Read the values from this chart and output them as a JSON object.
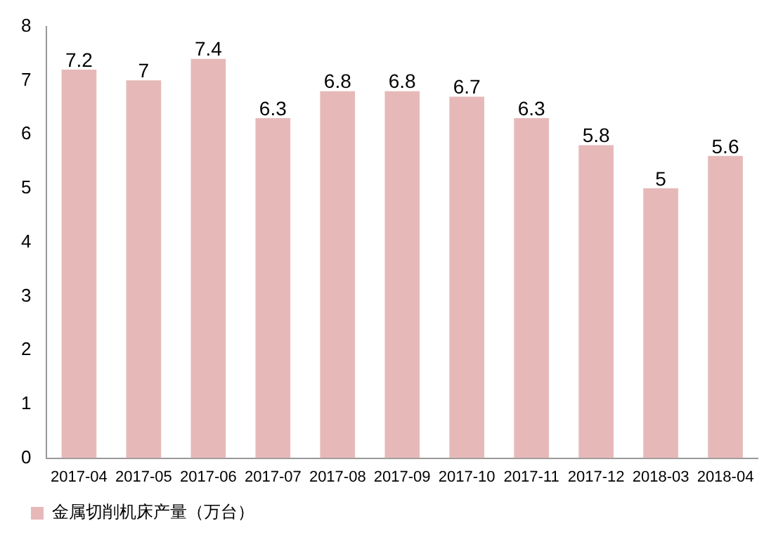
{
  "chart_data": {
    "type": "bar",
    "categories": [
      "2017-04",
      "2017-05",
      "2017-06",
      "2017-07",
      "2017-08",
      "2017-09",
      "2017-10",
      "2017-11",
      "2017-12",
      "2018-03",
      "2018-04"
    ],
    "series": [
      {
        "name": "金属切削机床产量（万台）",
        "color": "#e6b9b8",
        "values": [
          7.2,
          7,
          7.4,
          6.3,
          6.8,
          6.8,
          6.7,
          6.3,
          5.8,
          5,
          5.6
        ]
      }
    ],
    "ylim": [
      0,
      8
    ],
    "yticks": [
      0,
      1,
      2,
      3,
      4,
      5,
      6,
      7,
      8
    ],
    "grid": false,
    "legend": "bottom",
    "data_labels": true
  }
}
